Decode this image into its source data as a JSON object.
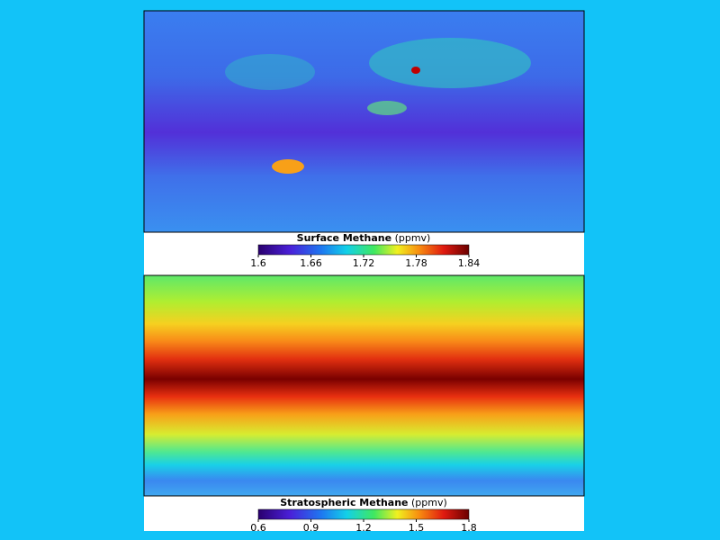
{
  "panels": [
    {
      "colorbar": {
        "title": "Surface Methane",
        "unit": "(ppmv)",
        "ticks": [
          1.6,
          1.66,
          1.72,
          1.78,
          1.84
        ]
      }
    },
    {
      "colorbar": {
        "title": "Stratospheric Methane",
        "unit": "(ppmv)",
        "ticks": [
          0.6,
          0.9,
          1.2,
          1.5,
          1.8
        ]
      }
    }
  ]
}
